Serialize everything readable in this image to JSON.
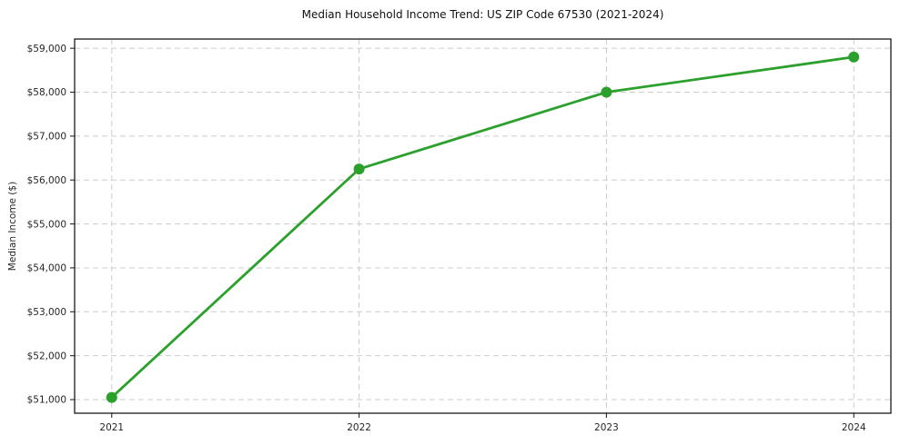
{
  "chart_data": {
    "type": "line",
    "title": "Median Household Income Trend: US ZIP Code 67530 (2021-2024)",
    "xlabel": "",
    "ylabel": "Median Income ($)",
    "categories": [
      "2021",
      "2022",
      "2023",
      "2024"
    ],
    "series": [
      {
        "name": "Median Income",
        "color": "#2ca02c",
        "values": [
          51050,
          56250,
          58000,
          58800
        ]
      }
    ],
    "y_ticks": [
      {
        "value": 51000,
        "label": "$51,000"
      },
      {
        "value": 52000,
        "label": "$52,000"
      },
      {
        "value": 53000,
        "label": "$53,000"
      },
      {
        "value": 54000,
        "label": "$54,000"
      },
      {
        "value": 55000,
        "label": "$55,000"
      },
      {
        "value": 56000,
        "label": "$56,000"
      },
      {
        "value": 57000,
        "label": "$57,000"
      },
      {
        "value": 58000,
        "label": "$58,000"
      },
      {
        "value": 59000,
        "label": "$59,000"
      }
    ],
    "xlim": [
      -0.15,
      3.15
    ],
    "ylim": [
      50690,
      59210
    ],
    "grid": true,
    "grid_style": "dashed",
    "grid_color": "#cccccc",
    "legend": false,
    "marker": "circle",
    "background_color": "#ffffff",
    "text_color": "#262626"
  }
}
